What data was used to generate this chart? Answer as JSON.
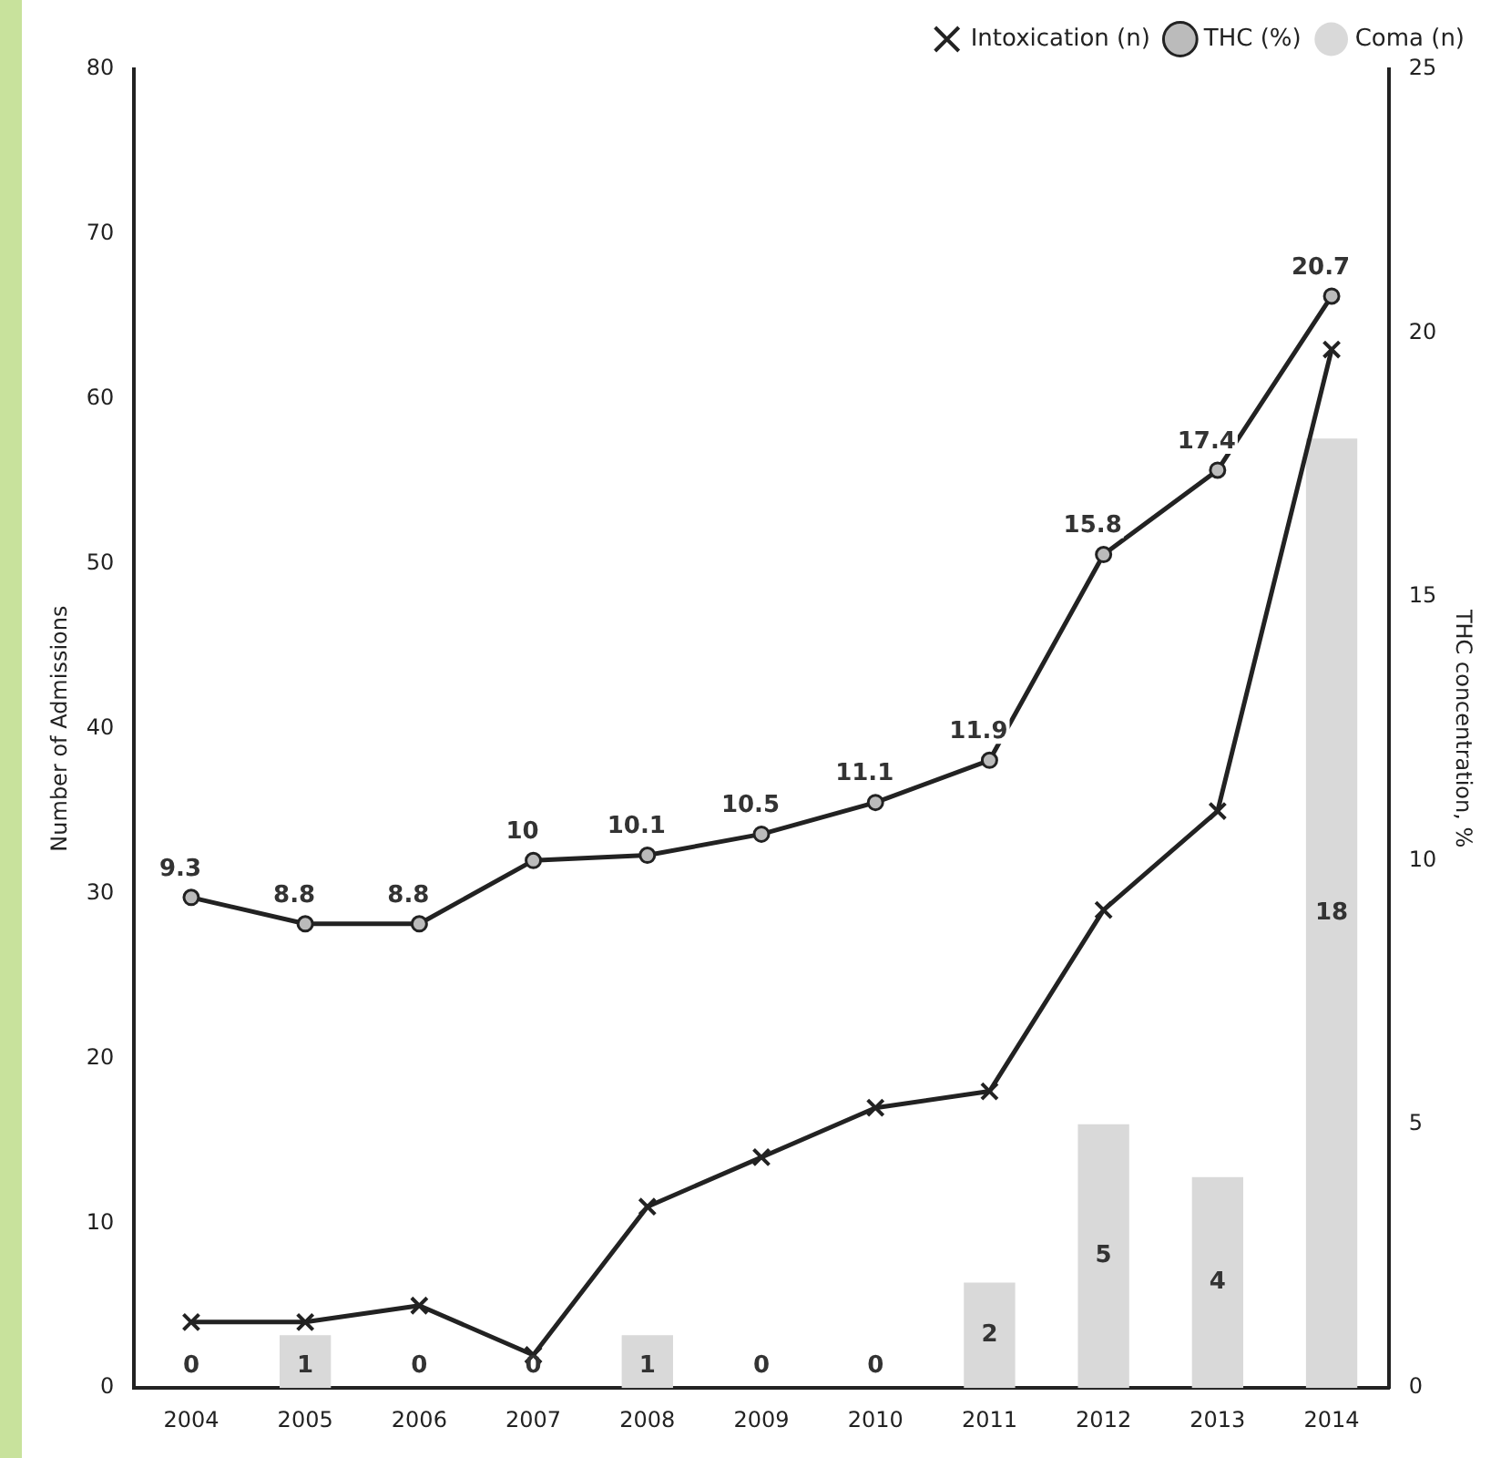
{
  "chart_data": {
    "type": "bar",
    "ylabel": "Number of Admissions",
    "y2label": "THC concentration, %",
    "categories": [
      "2004",
      "2005",
      "2006",
      "2007",
      "2008",
      "2009",
      "2010",
      "2011",
      "2012",
      "2013",
      "2014"
    ],
    "ylim": [
      0,
      80
    ],
    "yticks": [
      0,
      10,
      20,
      30,
      40,
      50,
      60,
      70,
      80
    ],
    "y2lim": [
      0,
      25
    ],
    "y2ticks": [
      0,
      5,
      10,
      15,
      20,
      25
    ],
    "grid": false,
    "legend": "top right",
    "series": [
      {
        "name": "Coma (n)",
        "axis": "y2",
        "color": "#d9d9d9",
        "values": [
          0,
          1,
          0,
          0,
          1,
          0,
          0,
          2,
          5,
          4,
          18
        ],
        "value_labels": [
          "0",
          "1",
          "0",
          "0",
          "1",
          "0",
          "0",
          "2",
          "5",
          "4",
          "18"
        ]
      },
      {
        "name": "Intoxication (n)",
        "type": "line",
        "color": "#222222",
        "marker": "cross",
        "values": [
          4,
          4,
          5,
          2,
          11,
          14,
          17,
          18,
          29,
          35,
          63
        ]
      },
      {
        "name": "THC (%)",
        "type": "line",
        "axis": "y2",
        "color": "#222222",
        "marker": "circle",
        "values": [
          9.3,
          8.8,
          8.8,
          10,
          10.1,
          10.5,
          11.1,
          11.9,
          15.8,
          17.4,
          20.7
        ],
        "value_labels": [
          "9.3",
          "8.8",
          "8.8",
          "10",
          "10.1",
          "10.5",
          "11.1",
          "11.9",
          "15.8",
          "17.4",
          "20.7"
        ]
      }
    ]
  }
}
